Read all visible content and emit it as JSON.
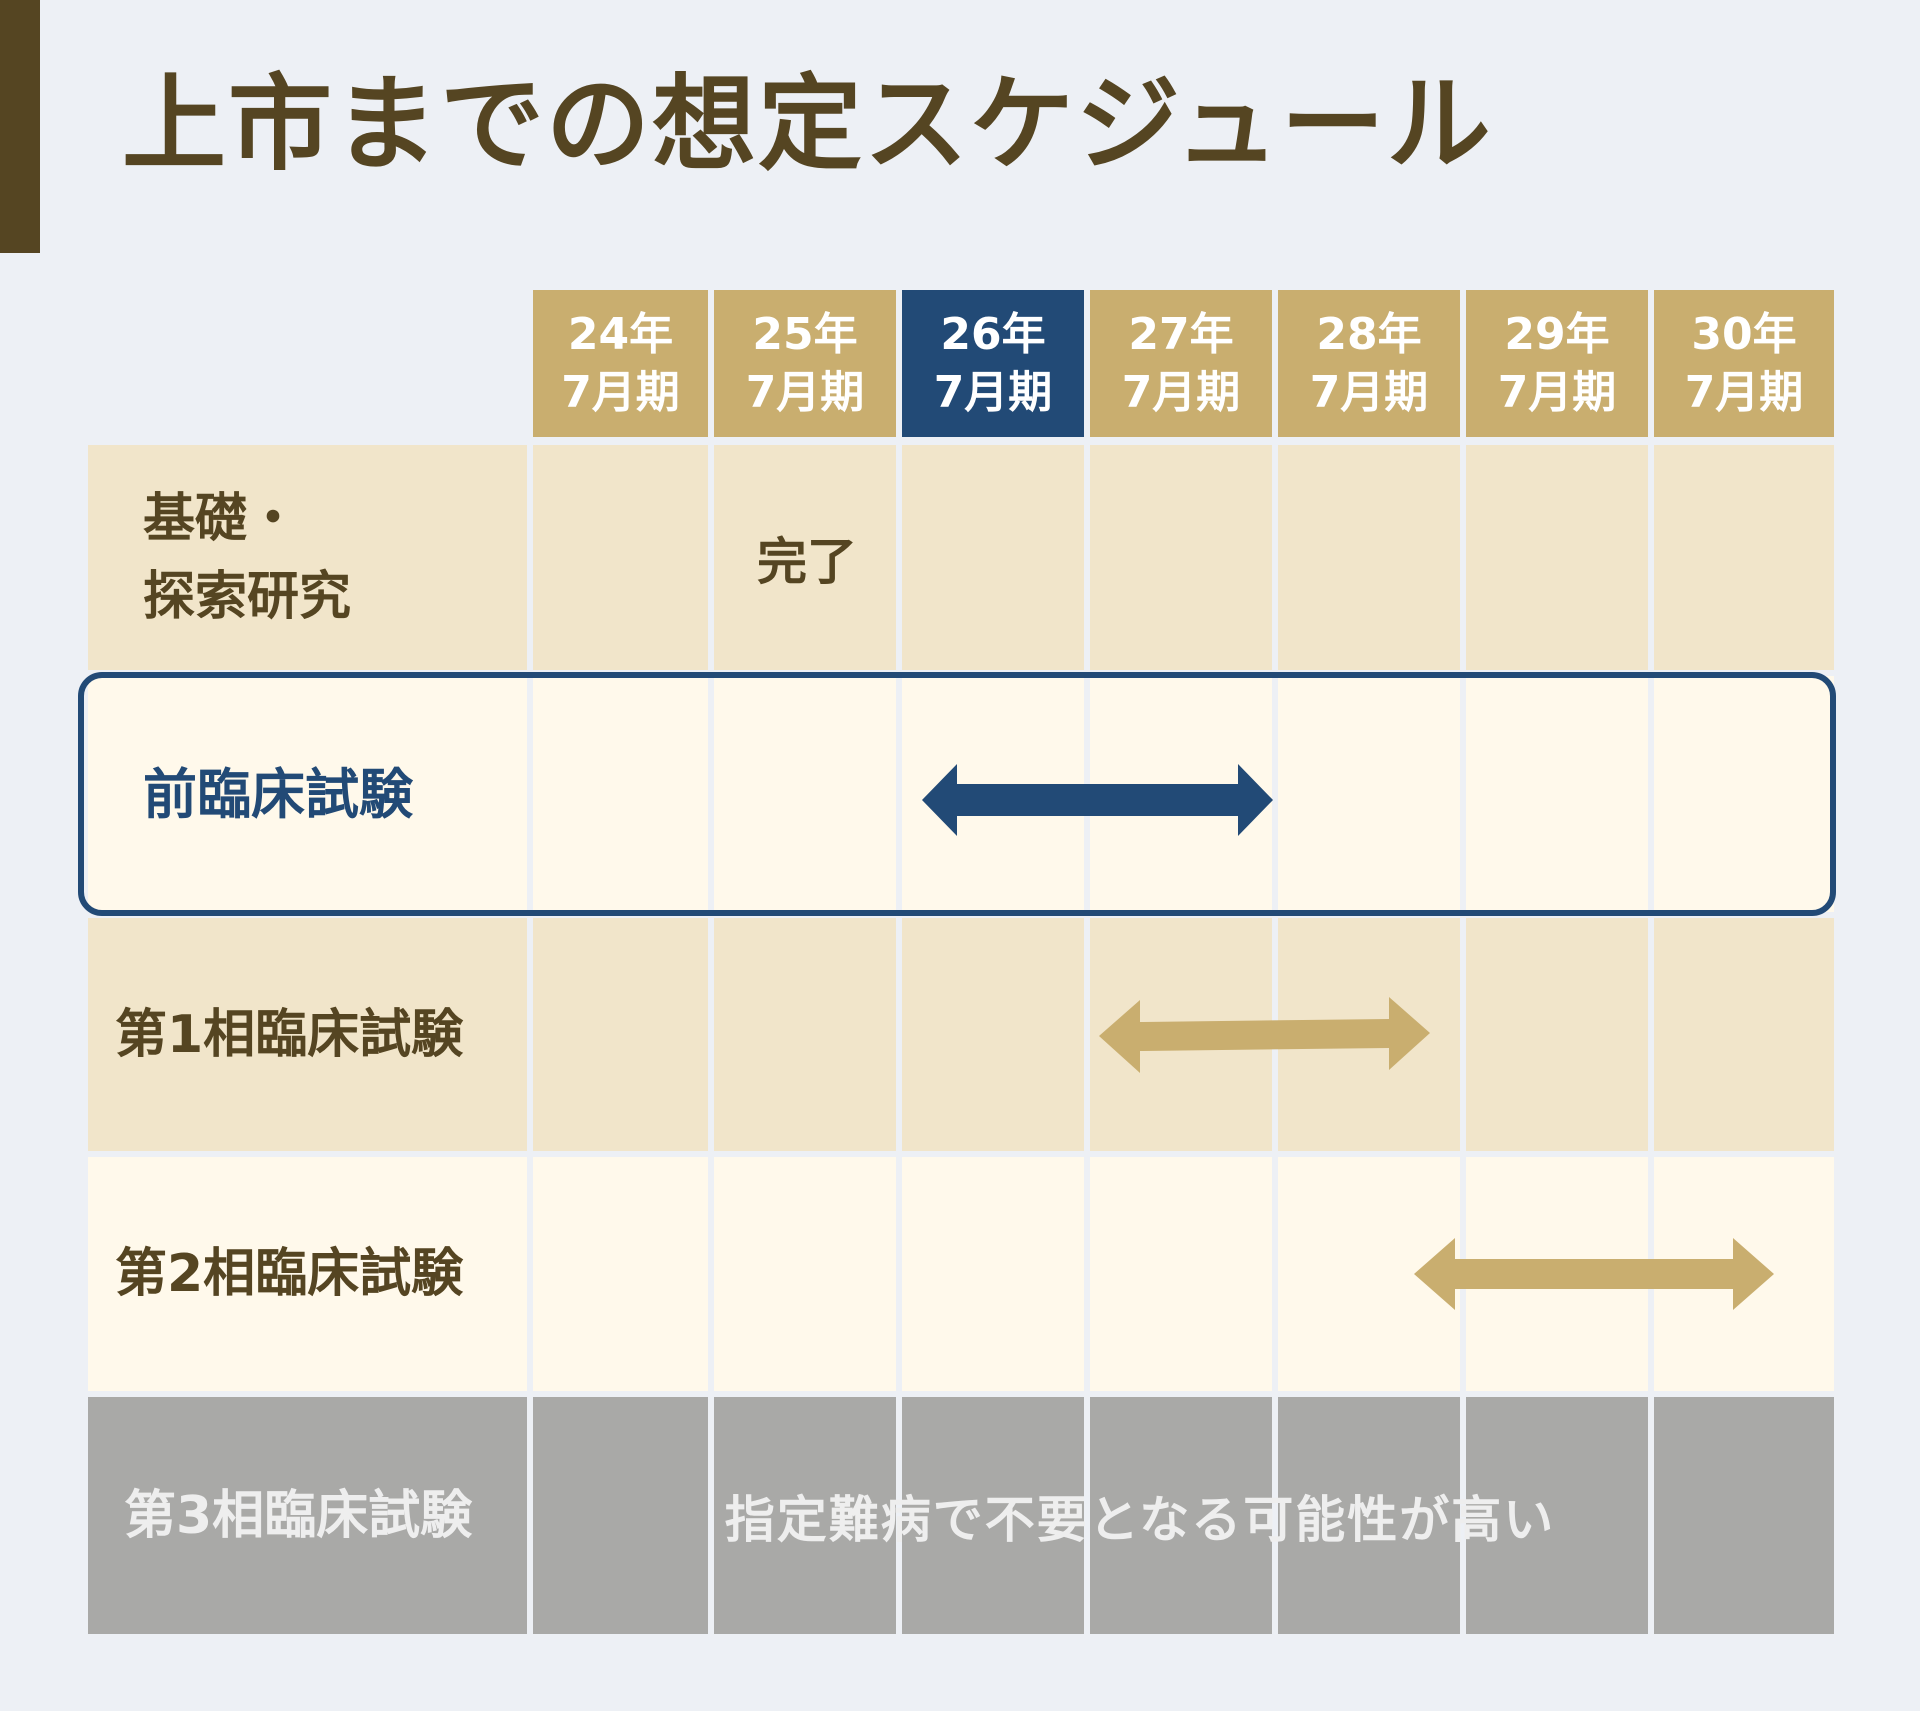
{
  "title": "上市までの想定スケジュール",
  "columns": [
    {
      "year": "24年",
      "period": "7月期"
    },
    {
      "year": "25年",
      "period": "7月期"
    },
    {
      "year": "26年",
      "period": "7月期",
      "current": true
    },
    {
      "year": "27年",
      "period": "7月期"
    },
    {
      "year": "28年",
      "period": "7月期"
    },
    {
      "year": "29年",
      "period": "7月期"
    },
    {
      "year": "30年",
      "period": "7月期"
    }
  ],
  "rows": [
    {
      "label_line1": "基礎・",
      "label_line2": "探索研究",
      "note": "完了"
    },
    {
      "label": "前臨床試験",
      "span": {
        "start_col": 2,
        "end_col": 3
      },
      "highlighted": true
    },
    {
      "label": "第1相臨床試験",
      "span": {
        "start_col": 3,
        "end_col": 4
      }
    },
    {
      "label": "第2相臨床試験",
      "span": {
        "start_col": 5,
        "end_col": 6
      }
    },
    {
      "label": "第3相臨床試験",
      "note": "指定難病で不要となる可能性が高い"
    }
  ],
  "colors": {
    "brand_dark": "#554522",
    "gold": "#c9ae6f",
    "navy": "#224a76",
    "beige_row": "#f1e5ca",
    "cream_row": "#fff9eb",
    "gray_row": "#a9a9a7",
    "background": "#edf0f5"
  }
}
